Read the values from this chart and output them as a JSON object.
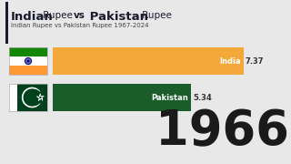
{
  "title_bold_parts": [
    "Indian",
    "Pakistan"
  ],
  "title_normal_parts": [
    " Rupee ",
    "vs ",
    " Rupee"
  ],
  "subtitle": "Indian Rupee vs Pakistan Rupee 1967-2024",
  "year": "1966",
  "bars": [
    {
      "label": "India",
      "value": 7.37,
      "color": "#F5A83A"
    },
    {
      "label": "Pakistan",
      "value": 5.34,
      "color": "#1A5C2A"
    }
  ],
  "max_value": 8.5,
  "bg_color": "#E8E8E8",
  "india_flag": {
    "top": "#FF9933",
    "mid": "#FFFFFF",
    "bot": "#138808",
    "chakra": "#000080"
  },
  "pakistan_flag": {
    "white": "#FFFFFF",
    "green": "#01411C"
  },
  "title_bar_color": "#1a1a2e",
  "year_color": "#1a1a1a",
  "label_color": "#333333"
}
